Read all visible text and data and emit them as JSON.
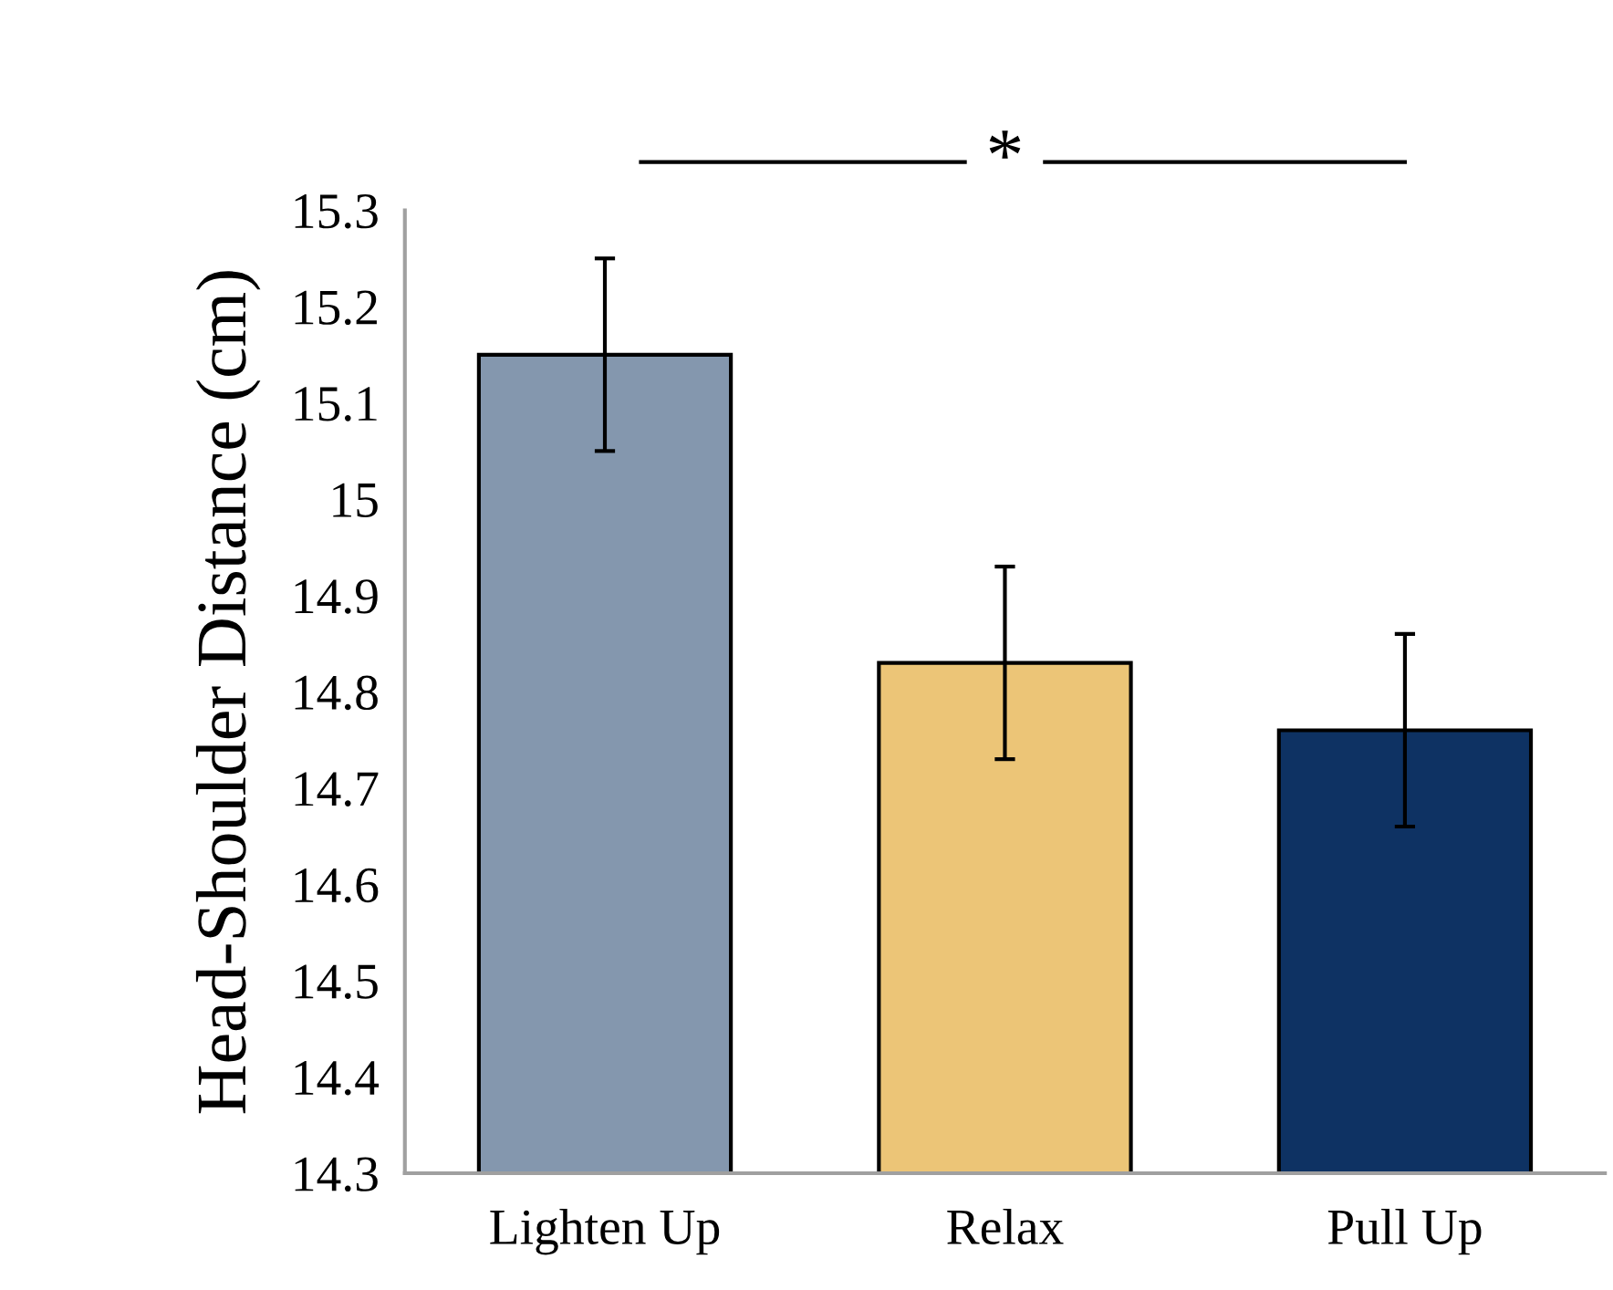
{
  "chart_data": {
    "type": "bar",
    "ylabel": "Head-Shoulder Distance (cm)",
    "categories": [
      "Lighten Up",
      "Relax",
      "Pull Up"
    ],
    "values": [
      15.15,
      14.83,
      14.76
    ],
    "colors": [
      "#8497ae",
      "#ecc577",
      "#0e3263"
    ],
    "errors": [
      0.1,
      0.1,
      0.1
    ],
    "ylim": [
      14.3,
      15.3
    ],
    "yticks": [
      14.3,
      14.4,
      14.5,
      14.6,
      14.7,
      14.8,
      14.9,
      15,
      15.1,
      15.2,
      15.3
    ],
    "grid": false,
    "legend": false,
    "annotations": [
      "*"
    ]
  }
}
